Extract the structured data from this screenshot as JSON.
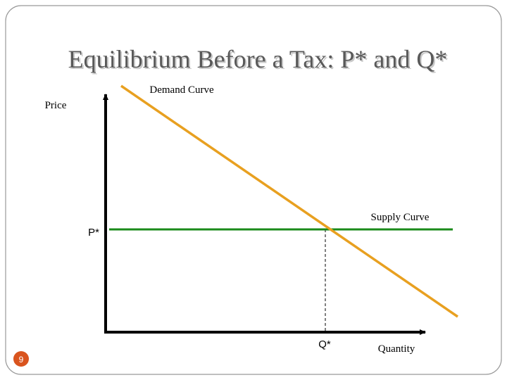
{
  "slide": {
    "title": "Equilibrium Before a Tax: P* and Q*",
    "page_number": "9"
  },
  "diagram": {
    "y_axis_label": "Price",
    "x_axis_label": "Quantity",
    "demand_label": "Demand Curve",
    "supply_label": "Supply Curve",
    "price_label": "P*",
    "quantity_label": "Q*"
  }
}
